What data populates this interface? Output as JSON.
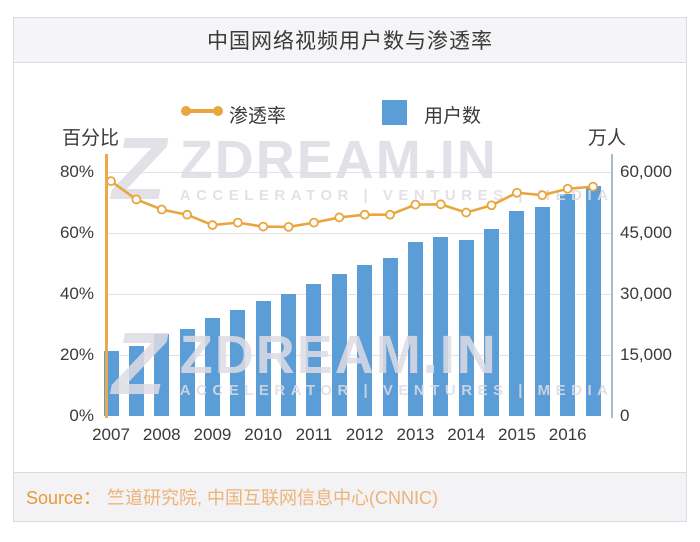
{
  "header": {
    "title": "中国网络视频用户数与渗透率"
  },
  "legend": {
    "line_label": "渗透率",
    "bar_label": "用户数"
  },
  "axes": {
    "left_title": "百分比",
    "right_title": "万人"
  },
  "watermark": {
    "logo": "Z",
    "text": "ZDREAM.IN",
    "subtext": "ACCELERATOR | VENTURES | MEDIA"
  },
  "footer": {
    "source_label": "Source：",
    "source_text": "竺道研究院, 中国互联网信息中心(CNNIC)"
  },
  "colors": {
    "bar": "#5b9dd6",
    "line": "#e9a63f",
    "left_axis": "#eba94b",
    "right_axis": "#9fc0c6",
    "source_text": "#e79a3c"
  },
  "chart_data": {
    "type": "bar",
    "title": "中国网络视频用户数与渗透率",
    "x_year_labels": [
      "2007",
      "2008",
      "2009",
      "2010",
      "2011",
      "2012",
      "2013",
      "2014",
      "2015",
      "2016"
    ],
    "points_per_year": 2,
    "series": [
      {
        "name": "用户数",
        "type": "bar",
        "axis": "right",
        "unit": "万人",
        "values": [
          16000,
          17200,
          20200,
          21400,
          24000,
          26000,
          28400,
          30100,
          32500,
          35000,
          37200,
          38900,
          42800,
          43900,
          43300,
          46100,
          50400,
          51400,
          54500,
          56500
        ]
      },
      {
        "name": "渗透率",
        "type": "line",
        "axis": "left",
        "unit": "%",
        "values": [
          77,
          71,
          67.7,
          66,
          62.6,
          63.4,
          62.1,
          62,
          63.4,
          65.1,
          66,
          66,
          69.3,
          69.4,
          66.7,
          69.1,
          73.2,
          72.4,
          74.5,
          75.2
        ]
      }
    ],
    "left_axis": {
      "label": "百分比",
      "range": [
        0,
        80
      ],
      "ticks": [
        {
          "label": "80%",
          "value": 80
        },
        {
          "label": "60%",
          "value": 60
        },
        {
          "label": "40%",
          "value": 40
        },
        {
          "label": "20%",
          "value": 20
        },
        {
          "label": "0%",
          "value": 0
        }
      ]
    },
    "right_axis": {
      "label": "万人",
      "range": [
        0,
        60000
      ],
      "ticks": [
        {
          "label": "60,000",
          "value": 60000
        },
        {
          "label": "45,000",
          "value": 45000
        },
        {
          "label": "30,000",
          "value": 30000
        },
        {
          "label": "15,000",
          "value": 15000
        },
        {
          "label": "0",
          "value": 0
        }
      ]
    },
    "grid": true,
    "legend_position": "top"
  }
}
